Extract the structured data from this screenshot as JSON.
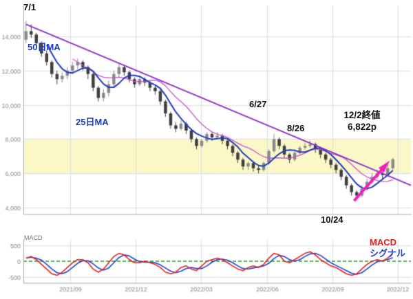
{
  "annotations": {
    "peak_date": "7/1",
    "ma50_label": "50日MA",
    "ma25_label": "25日MA",
    "trendline_touch_1": "6/27",
    "trendline_touch_2": "8/26",
    "close_line1": "12/2終値",
    "close_line2": "6,822p",
    "bottom_date": "10/24",
    "macd_panel_label": "MACD",
    "legend_macd": "MACD",
    "legend_signal": "シグナル"
  },
  "chart_data": [
    {
      "type": "candlestick",
      "panel": "price",
      "ylim": [
        3600,
        15800
      ],
      "yticks": [
        4000,
        6000,
        8000,
        10000,
        12000,
        14000
      ],
      "ytick_labels": [
        "4,000",
        "6,000",
        "8,000",
        "10,000",
        "12,000",
        "14,000"
      ],
      "xlim": [
        0,
        75
      ],
      "xticks": [
        {
          "pos": 9,
          "label": "2021/09"
        },
        {
          "pos": 21.7,
          "label": "2021/12"
        },
        {
          "pos": 34.4,
          "label": "2022/03"
        },
        {
          "pos": 47.1,
          "label": "2022/06"
        },
        {
          "pos": 59.8,
          "label": "2022/09"
        },
        {
          "pos": 72.5,
          "label": "2022/12"
        }
      ],
      "highlight_band": {
        "from": 6000,
        "to": 8000,
        "color": "#FBF8C8"
      },
      "trendline": {
        "x1": 0.5,
        "y1": 14700,
        "x2": 75,
        "y2": 5300,
        "color": "#8B2FC9"
      },
      "arrow": {
        "x1": 64,
        "y1": 4400,
        "x2": 70.2,
        "y2": 6500,
        "color": "#F020C0"
      },
      "series": [
        {
          "name": "price",
          "ohlc": [
            [
              13800,
              14900,
              13600,
              14300
            ],
            [
              14300,
              14700,
              13900,
              14100
            ],
            [
              14100,
              14200,
              13400,
              13600
            ],
            [
              13600,
              13700,
              12800,
              13000
            ],
            [
              13000,
              13200,
              12300,
              12500
            ],
            [
              12500,
              12600,
              11600,
              11800
            ],
            [
              11800,
              12000,
              11200,
              11500
            ],
            [
              11500,
              11900,
              11300,
              11700
            ],
            [
              11700,
              12200,
              11500,
              12000
            ],
            [
              12000,
              12500,
              11800,
              12300
            ],
            [
              12300,
              12700,
              12100,
              12500
            ],
            [
              12500,
              12600,
              12000,
              12200
            ],
            [
              12200,
              12300,
              11500,
              11800
            ],
            [
              11800,
              11900,
              10800,
              11000
            ],
            [
              11000,
              11100,
              10200,
              10400
            ],
            [
              10400,
              10900,
              10200,
              10700
            ],
            [
              10700,
              11400,
              10500,
              11200
            ],
            [
              11200,
              12000,
              11000,
              11800
            ],
            [
              11800,
              12400,
              11600,
              12200
            ],
            [
              12200,
              12300,
              11700,
              11900
            ],
            [
              11900,
              12000,
              11300,
              11500
            ],
            [
              11500,
              11600,
              11000,
              11200
            ],
            [
              11200,
              11700,
              11100,
              11500
            ],
            [
              11500,
              11600,
              11100,
              11300
            ],
            [
              11300,
              11400,
              10800,
              11000
            ],
            [
              11000,
              11100,
              10600,
              10800
            ],
            [
              10800,
              10900,
              10000,
              10200
            ],
            [
              10200,
              10300,
              9300,
              9500
            ],
            [
              9500,
              9600,
              8600,
              8800
            ],
            [
              8800,
              9000,
              8400,
              8600
            ],
            [
              8600,
              9100,
              8500,
              8900
            ],
            [
              8900,
              9000,
              8300,
              8500
            ],
            [
              8500,
              8600,
              7800,
              8000
            ],
            [
              8000,
              8100,
              7400,
              7600
            ],
            [
              7600,
              8000,
              7500,
              7900
            ],
            [
              7900,
              8400,
              7800,
              8300
            ],
            [
              8300,
              8400,
              7900,
              8100
            ],
            [
              8100,
              8400,
              8000,
              8200
            ],
            [
              8200,
              8300,
              7700,
              7900
            ],
            [
              7900,
              8000,
              7400,
              7600
            ],
            [
              7600,
              7700,
              7000,
              7200
            ],
            [
              7200,
              7300,
              6600,
              6800
            ],
            [
              6800,
              6900,
              6200,
              6400
            ],
            [
              6400,
              6700,
              6200,
              6600
            ],
            [
              6600,
              6700,
              6100,
              6300
            ],
            [
              6300,
              6500,
              6000,
              6200
            ],
            [
              6200,
              6700,
              6100,
              6600
            ],
            [
              6600,
              7400,
              6500,
              7300
            ],
            [
              7300,
              8300,
              7200,
              8000
            ],
            [
              8000,
              8100,
              7400,
              7600
            ],
            [
              7600,
              7700,
              6900,
              7100
            ],
            [
              7100,
              7200,
              6600,
              6800
            ],
            [
              6800,
              7300,
              6700,
              7200
            ],
            [
              7200,
              7600,
              7100,
              7500
            ],
            [
              7500,
              7800,
              7400,
              7600
            ],
            [
              7600,
              7900,
              7500,
              7700
            ],
            [
              7700,
              7800,
              7200,
              7400
            ],
            [
              7400,
              7500,
              6900,
              7100
            ],
            [
              7100,
              7200,
              6600,
              6800
            ],
            [
              6800,
              6900,
              6300,
              6500
            ],
            [
              6500,
              6600,
              6000,
              6200
            ],
            [
              6200,
              6300,
              5600,
              5800
            ],
            [
              5800,
              5900,
              5100,
              5300
            ],
            [
              5300,
              5400,
              4700,
              4900
            ],
            [
              4900,
              5000,
              4500,
              4700
            ],
            [
              4700,
              5300,
              4600,
              5100
            ],
            [
              5100,
              5700,
              5000,
              5500
            ],
            [
              5500,
              6000,
              5400,
              5800
            ],
            [
              5800,
              6200,
              5700,
              6000
            ],
            [
              6000,
              6100,
              5700,
              5900
            ],
            [
              5900,
              6500,
              5800,
              6300
            ],
            [
              6300,
              6900,
              6200,
              6822
            ]
          ]
        },
        {
          "name": "25日MA",
          "derived": "ma",
          "window": 5,
          "color": "#1F3BBF"
        },
        {
          "name": "50日MA",
          "derived": "ma",
          "window": 10,
          "color": "#C455CC"
        }
      ]
    },
    {
      "type": "line",
      "panel": "macd",
      "ylim": [
        -700,
        700
      ],
      "yticks": [
        500,
        0,
        -500
      ],
      "zero_line": {
        "style": "dashed",
        "color": "#1A9E1A"
      },
      "series": [
        {
          "name": "MACD",
          "color": "#E02020",
          "values": [
            100,
            150,
            50,
            -100,
            -250,
            -400,
            -450,
            -350,
            -200,
            -50,
            50,
            50,
            -50,
            -250,
            -350,
            -250,
            -50,
            150,
            250,
            200,
            50,
            -50,
            -50,
            0,
            -50,
            -100,
            -200,
            -350,
            -400,
            -350,
            -200,
            -150,
            -250,
            -300,
            -150,
            0,
            50,
            100,
            50,
            -50,
            -150,
            -250,
            -300,
            -200,
            -150,
            -200,
            -100,
            100,
            250,
            200,
            0,
            -50,
            50,
            150,
            250,
            300,
            200,
            50,
            -50,
            -150,
            -200,
            -300,
            -400,
            -450,
            -400,
            -250,
            -100,
            0,
            50,
            0,
            100,
            250
          ]
        },
        {
          "name": "シグナル",
          "color": "#2040D0",
          "derived": "signal",
          "window": 3
        }
      ]
    }
  ]
}
